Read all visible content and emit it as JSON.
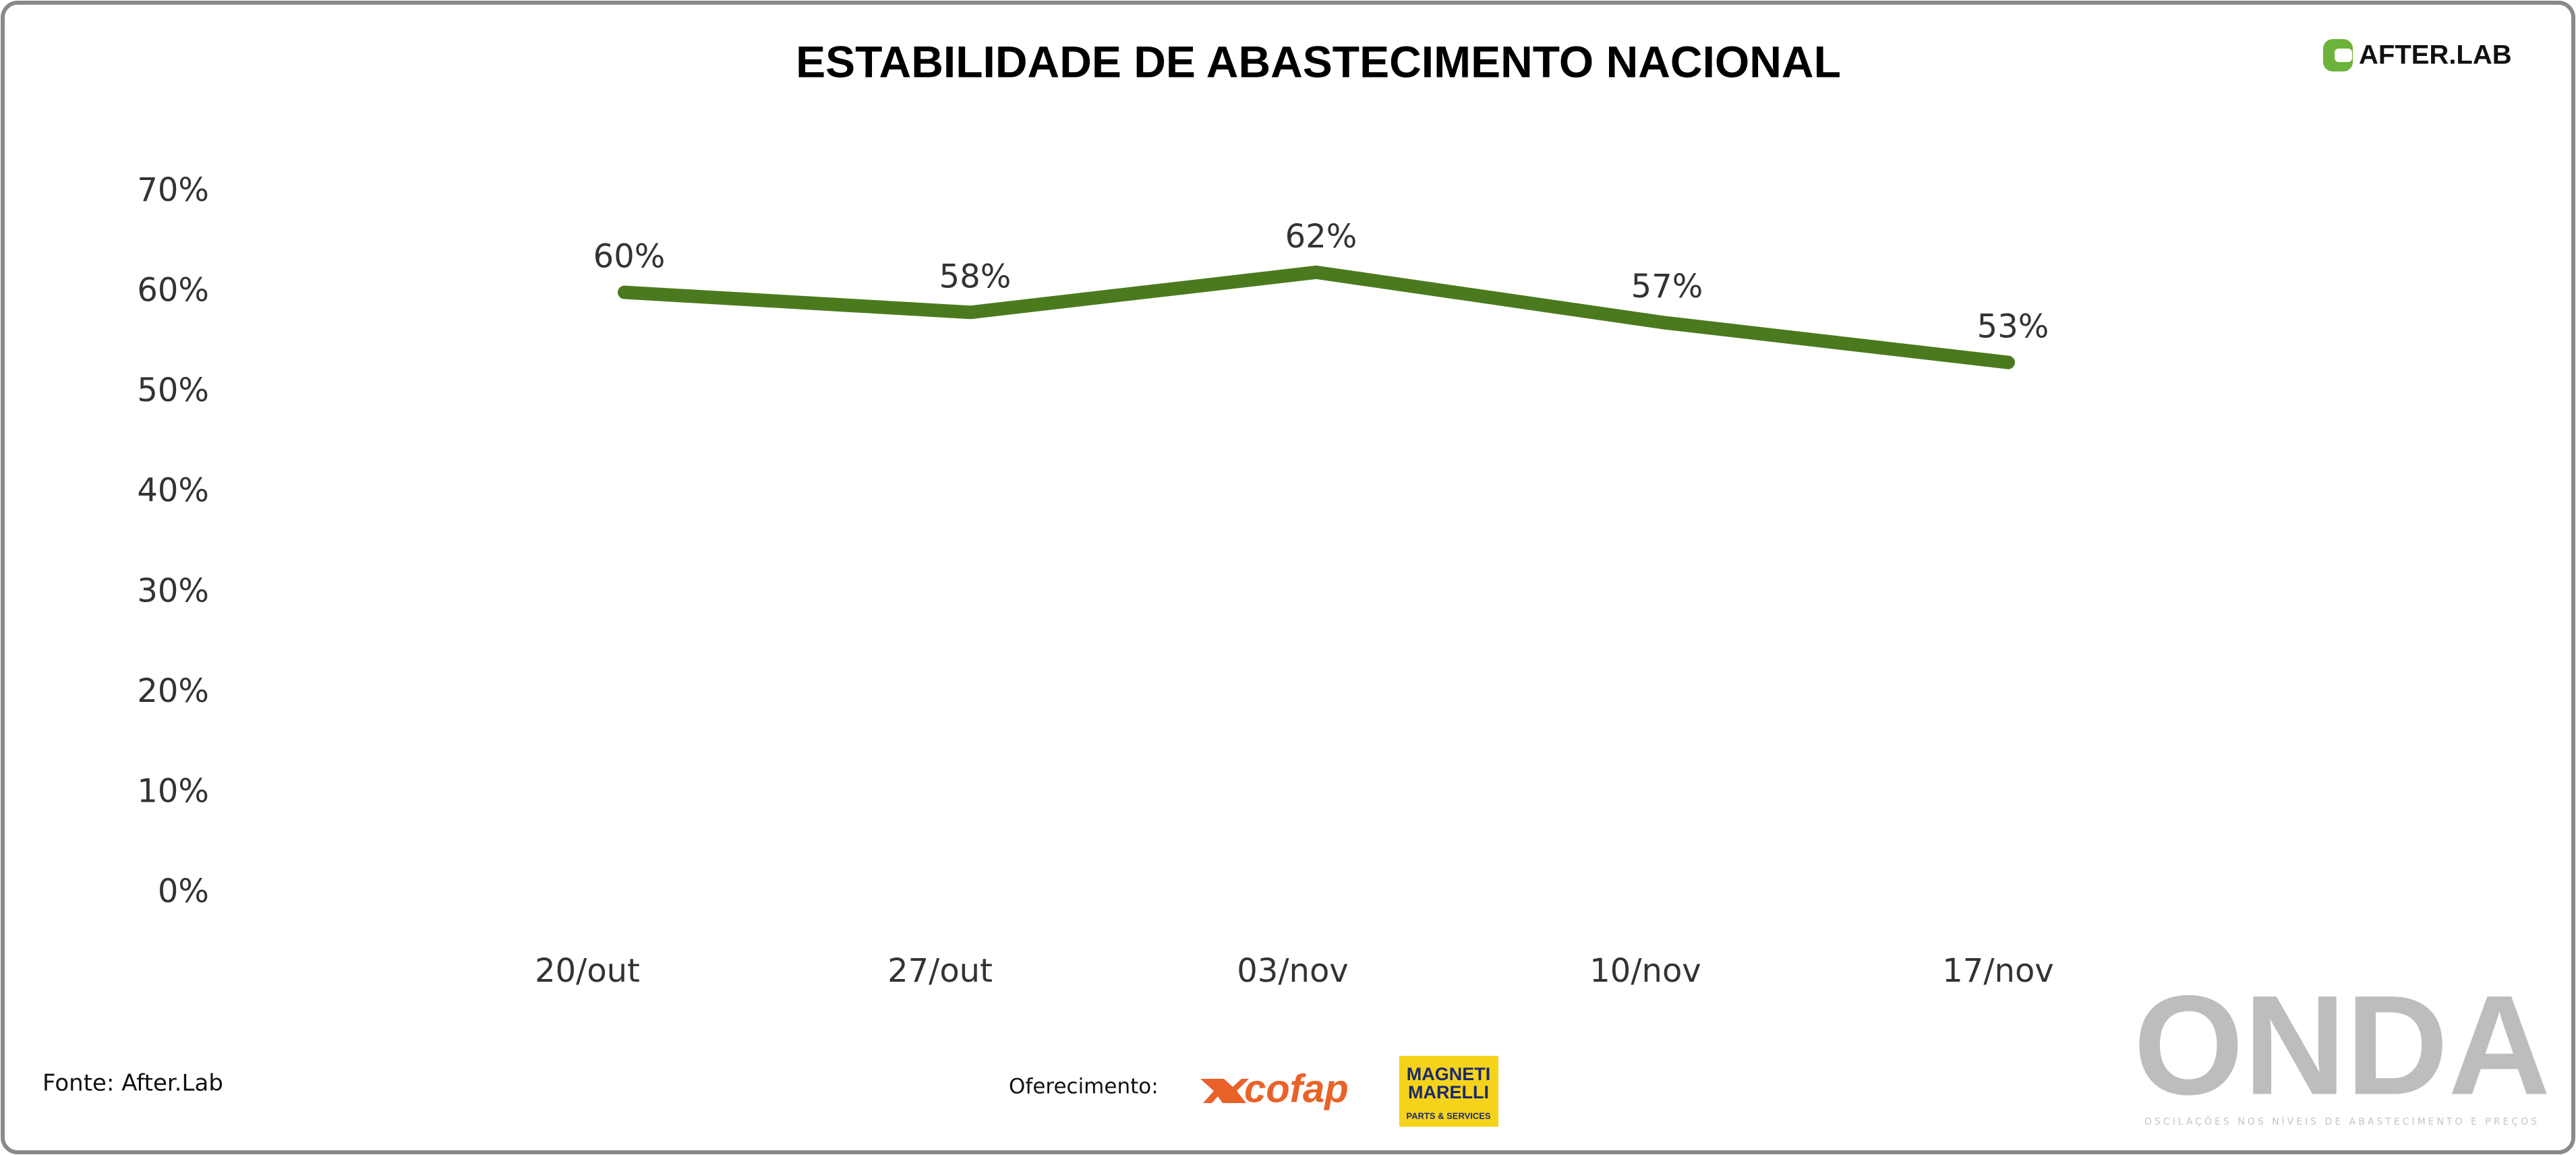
{
  "chart_data": {
    "type": "line",
    "title": "ESTABILIDADE DE ABASTECIMENTO NACIONAL",
    "categories": [
      "20/out",
      "27/out",
      "03/nov",
      "10/nov",
      "17/nov"
    ],
    "series": [
      {
        "name": "Estabilidade",
        "color": "#4b7a1e",
        "values": [
          60,
          58,
          62,
          57,
          53
        ],
        "value_labels": [
          "60%",
          "58%",
          "62%",
          "57%",
          "53%"
        ]
      }
    ],
    "ylim": [
      0,
      70
    ],
    "yticks": [
      {
        "value": 0,
        "label": "0%"
      },
      {
        "value": 10,
        "label": "10%"
      },
      {
        "value": 20,
        "label": "20%"
      },
      {
        "value": 30,
        "label": "30%"
      },
      {
        "value": 40,
        "label": "40%"
      },
      {
        "value": 50,
        "label": "50%"
      },
      {
        "value": 60,
        "label": "60%"
      },
      {
        "value": 70,
        "label": "70%"
      }
    ],
    "grid": false
  },
  "footer": {
    "source": "Fonte: After.Lab",
    "sponsor_label": "Oferecimento:",
    "brand": "AFTER.LAB",
    "sponsor_1": "cofap",
    "sponsor_2_line_1": "MAGNETI",
    "sponsor_2_line_2": "MARELLI",
    "sponsor_2_line_3": "PARTS & SERVICES",
    "logo": "ONDA",
    "logo_tagline": "OSCILAÇÕES NOS NÍVEIS DE ABASTECIMENTO E PREÇOS"
  }
}
